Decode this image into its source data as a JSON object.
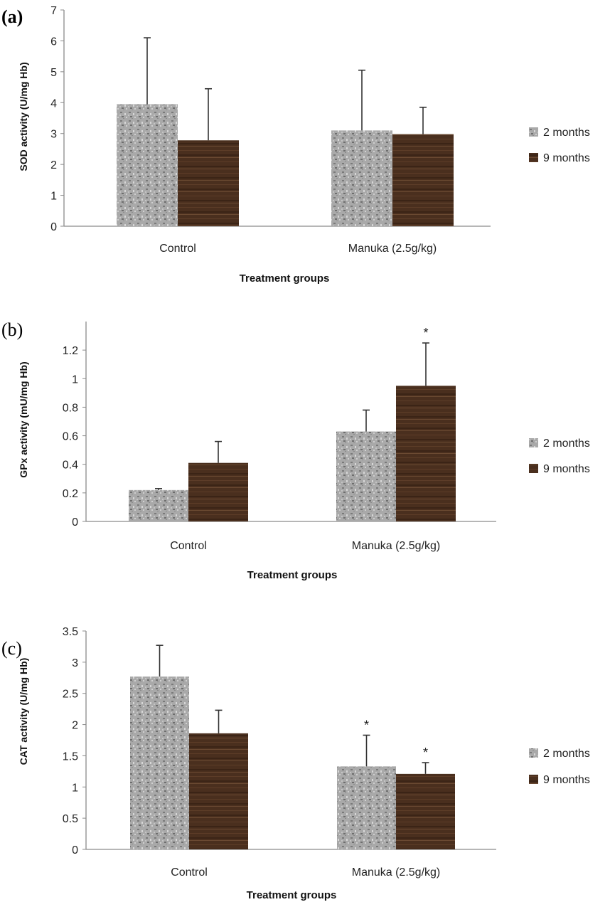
{
  "chart_data": [
    {
      "type": "bar",
      "panel": "(a)",
      "categories": [
        "Control",
        "Manuka (2.5g/kg)"
      ],
      "series": [
        {
          "name": "2 months",
          "values": [
            3.95,
            3.1
          ],
          "errors": [
            2.15,
            1.95
          ],
          "significance": [
            "",
            ""
          ]
        },
        {
          "name": "9 months",
          "values": [
            2.78,
            2.98
          ],
          "errors": [
            1.67,
            0.87
          ],
          "significance": [
            "",
            ""
          ]
        }
      ],
      "ylim": [
        0,
        7
      ],
      "yticks": [
        "0",
        "1",
        "2",
        "3",
        "4",
        "5",
        "6",
        "7"
      ],
      "xlabel": "Treatment groups",
      "ylabel": "SOD activity (U/mg Hb)",
      "legend_position": "right",
      "grid": false,
      "colors": {
        "2 months": "#a9a9a9",
        "9 months": "#4a2f1e"
      }
    },
    {
      "type": "bar",
      "panel": "(b)",
      "categories": [
        "Control",
        "Manuka (2.5g/kg)"
      ],
      "series": [
        {
          "name": "2 months",
          "values": [
            0.22,
            0.63
          ],
          "errors": [
            0.01,
            0.15
          ],
          "significance": [
            "",
            ""
          ]
        },
        {
          "name": "9 months",
          "values": [
            0.41,
            0.95
          ],
          "errors": [
            0.15,
            0.3
          ],
          "significance": [
            "",
            "*"
          ]
        }
      ],
      "ylim": [
        0,
        1.4
      ],
      "yticks": [
        "0",
        "0.2",
        "0.4",
        "0.6",
        "0.8",
        "1",
        "1.2"
      ],
      "xlabel": "Treatment groups",
      "ylabel": "GPx activity (mU/mg Hb)",
      "legend_position": "right",
      "grid": false,
      "colors": {
        "2 months": "#a9a9a9",
        "9 months": "#4a2f1e"
      }
    },
    {
      "type": "bar",
      "panel": "(c)",
      "categories": [
        "Control",
        "Manuka (2.5g/kg)"
      ],
      "series": [
        {
          "name": "2 months",
          "values": [
            2.77,
            1.33
          ],
          "errors": [
            0.5,
            0.5
          ],
          "significance": [
            "",
            "*"
          ]
        },
        {
          "name": "9 months",
          "values": [
            1.86,
            1.21
          ],
          "errors": [
            0.37,
            0.18
          ],
          "significance": [
            "",
            "*"
          ]
        }
      ],
      "ylim": [
        0,
        3.5
      ],
      "yticks": [
        "0",
        "0.5",
        "1",
        "1.5",
        "2",
        "2.5",
        "3",
        "3.5"
      ],
      "xlabel": "Treatment groups",
      "ylabel": "CAT activity (U/mg Hb)",
      "legend_position": "right",
      "grid": false,
      "colors": {
        "2 months": "#a9a9a9",
        "9 months": "#4a2f1e"
      }
    }
  ]
}
